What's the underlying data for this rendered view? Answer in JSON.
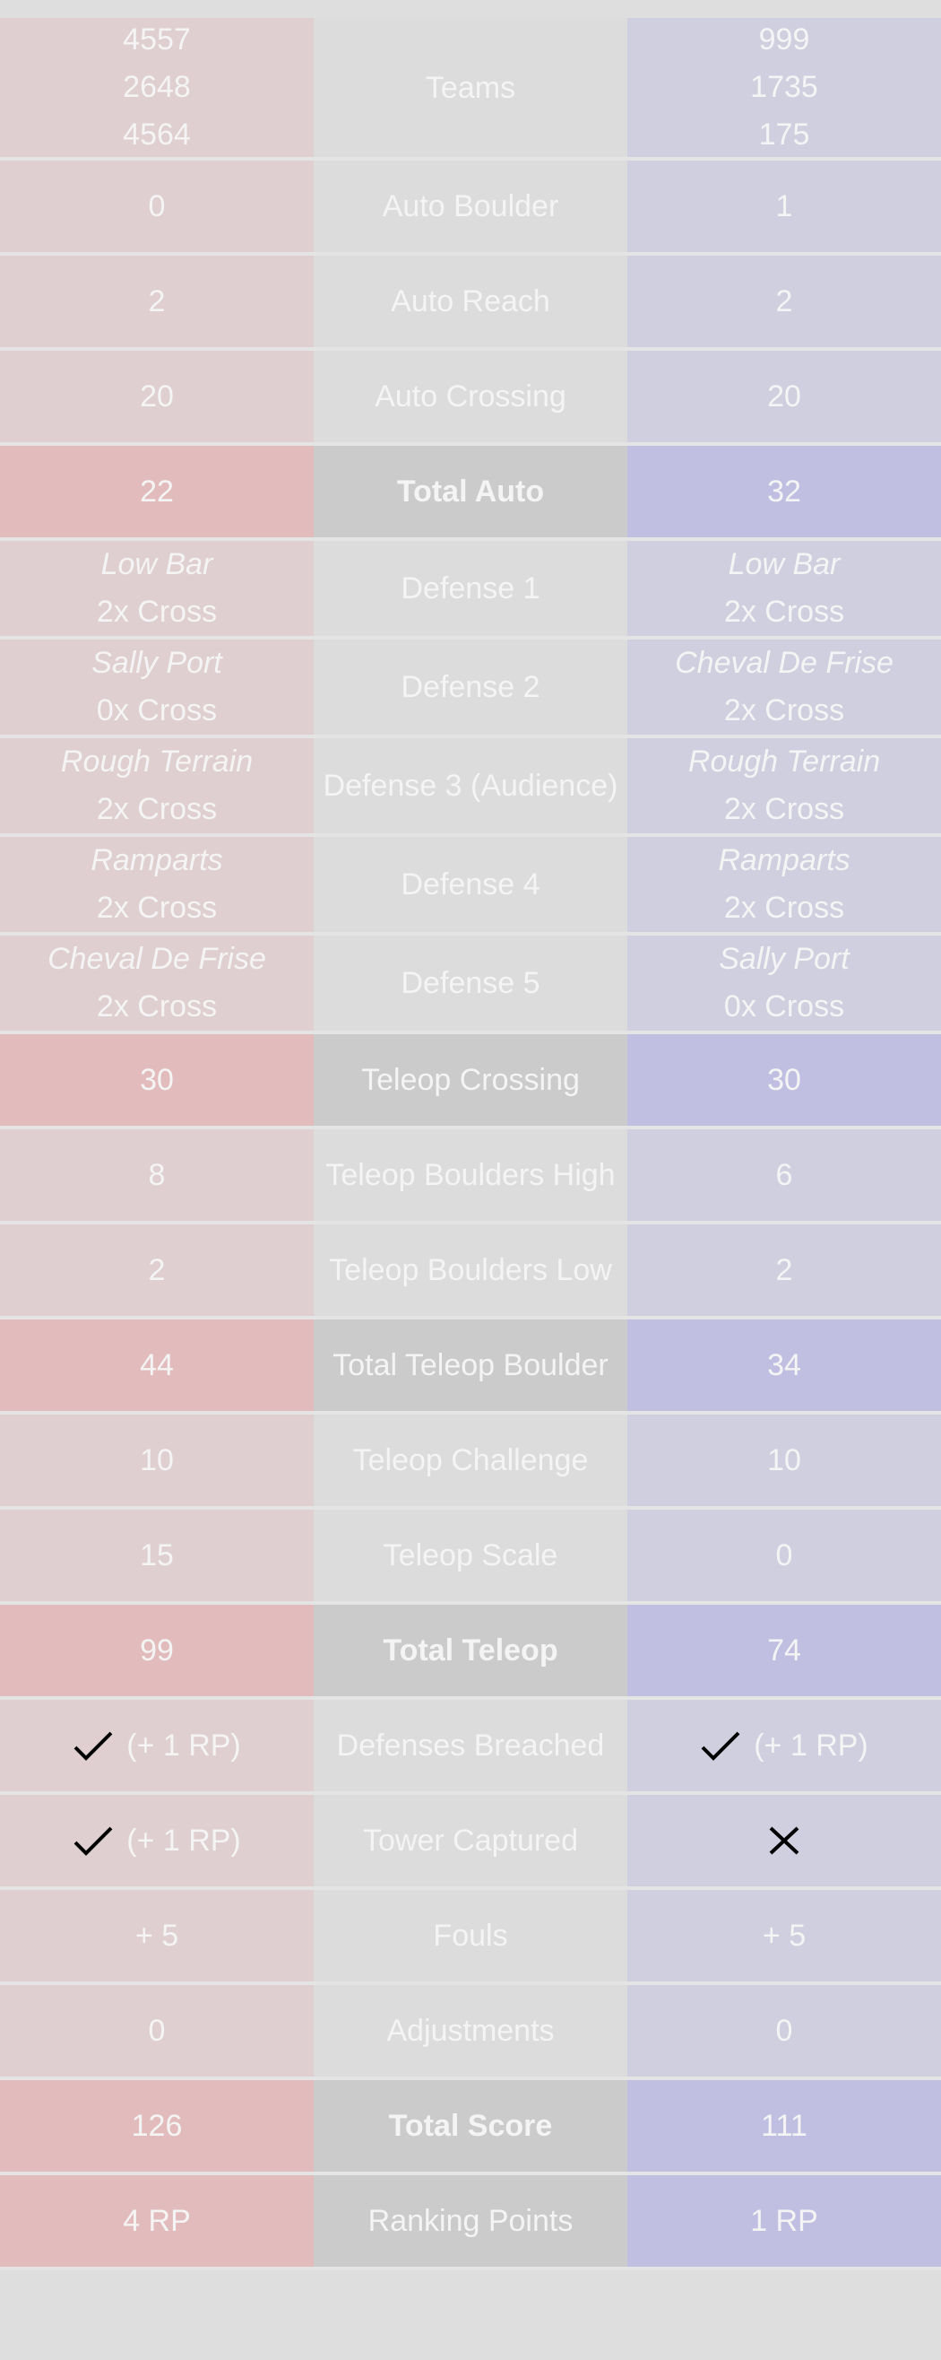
{
  "colors": {
    "red_light": "#dfcfd0",
    "red_strong": "#e2bcbd",
    "mid_light": "#dcdcdc",
    "mid_strong": "#cbcbcb",
    "blue_light": "#d0cfdf",
    "blue_strong": "#c0bfe1",
    "text": "#f4f4f4",
    "icon": "#000000"
  },
  "rows": [
    {
      "name": "teams-row",
      "kind": "teams",
      "label": "Teams",
      "red": [
        "4557",
        "2648",
        "4564"
      ],
      "blue": [
        "999",
        "1735",
        "175"
      ]
    },
    {
      "name": "auto-boulder-row",
      "kind": "plain",
      "label": "Auto Boulder",
      "red": "0",
      "blue": "1"
    },
    {
      "name": "auto-reach-row",
      "kind": "plain",
      "label": "Auto Reach",
      "red": "2",
      "blue": "2"
    },
    {
      "name": "auto-crossing-row",
      "kind": "plain",
      "label": "Auto Crossing",
      "red": "20",
      "blue": "20"
    },
    {
      "name": "total-auto-row",
      "kind": "total",
      "label": "Total Auto",
      "red": "22",
      "blue": "32"
    },
    {
      "name": "defense-1-row",
      "kind": "defense",
      "label": "Defense 1",
      "red": {
        "name": "Low Bar",
        "cross": "2x Cross"
      },
      "blue": {
        "name": "Low Bar",
        "cross": "2x Cross"
      }
    },
    {
      "name": "defense-2-row",
      "kind": "defense",
      "label": "Defense 2",
      "red": {
        "name": "Sally Port",
        "cross": "0x Cross"
      },
      "blue": {
        "name": "Cheval De Frise",
        "cross": "2x Cross"
      }
    },
    {
      "name": "defense-3-row",
      "kind": "defense",
      "label": "Defense 3 (Audience)",
      "red": {
        "name": "Rough Terrain",
        "cross": "2x Cross"
      },
      "blue": {
        "name": "Rough Terrain",
        "cross": "2x Cross"
      }
    },
    {
      "name": "defense-4-row",
      "kind": "defense",
      "label": "Defense 4",
      "red": {
        "name": "Ramparts",
        "cross": "2x Cross"
      },
      "blue": {
        "name": "Ramparts",
        "cross": "2x Cross"
      }
    },
    {
      "name": "defense-5-row",
      "kind": "defense",
      "label": "Defense 5",
      "red": {
        "name": "Cheval De Frise",
        "cross": "2x Cross"
      },
      "blue": {
        "name": "Sally Port",
        "cross": "0x Cross"
      }
    },
    {
      "name": "teleop-crossing-row",
      "kind": "strong",
      "label": "Teleop Crossing",
      "red": "30",
      "blue": "30"
    },
    {
      "name": "teleop-boulders-high-row",
      "kind": "plain",
      "label": "Teleop Boulders High",
      "red": "8",
      "blue": "6"
    },
    {
      "name": "teleop-boulders-low-row",
      "kind": "plain",
      "label": "Teleop Boulders Low",
      "red": "2",
      "blue": "2"
    },
    {
      "name": "total-teleop-boulder-row",
      "kind": "strong",
      "label": "Total Teleop Boulder",
      "red": "44",
      "blue": "34"
    },
    {
      "name": "teleop-challenge-row",
      "kind": "plain",
      "label": "Teleop Challenge",
      "red": "10",
      "blue": "10"
    },
    {
      "name": "teleop-scale-row",
      "kind": "plain",
      "label": "Teleop Scale",
      "red": "15",
      "blue": "0"
    },
    {
      "name": "total-teleop-row",
      "kind": "total",
      "label": "Total Teleop",
      "red": "99",
      "blue": "74"
    },
    {
      "name": "defenses-breached-row",
      "kind": "mark",
      "label": "Defenses Breached",
      "red": {
        "icon": "check",
        "text": "(+ 1 RP)"
      },
      "blue": {
        "icon": "check",
        "text": "(+ 1 RP)"
      }
    },
    {
      "name": "tower-captured-row",
      "kind": "mark",
      "label": "Tower Captured",
      "red": {
        "icon": "check",
        "text": "(+ 1 RP)"
      },
      "blue": {
        "icon": "cross",
        "text": ""
      }
    },
    {
      "name": "fouls-row",
      "kind": "plain",
      "label": "Fouls",
      "red": "+ 5",
      "blue": "+ 5"
    },
    {
      "name": "adjustments-row",
      "kind": "plain",
      "label": "Adjustments",
      "red": "0",
      "blue": "0"
    },
    {
      "name": "total-score-row",
      "kind": "total",
      "label": "Total Score",
      "red": "126",
      "blue": "111"
    },
    {
      "name": "ranking-points-row",
      "kind": "strong",
      "label": "Ranking Points",
      "red": "4 RP",
      "blue": "1 RP"
    }
  ]
}
